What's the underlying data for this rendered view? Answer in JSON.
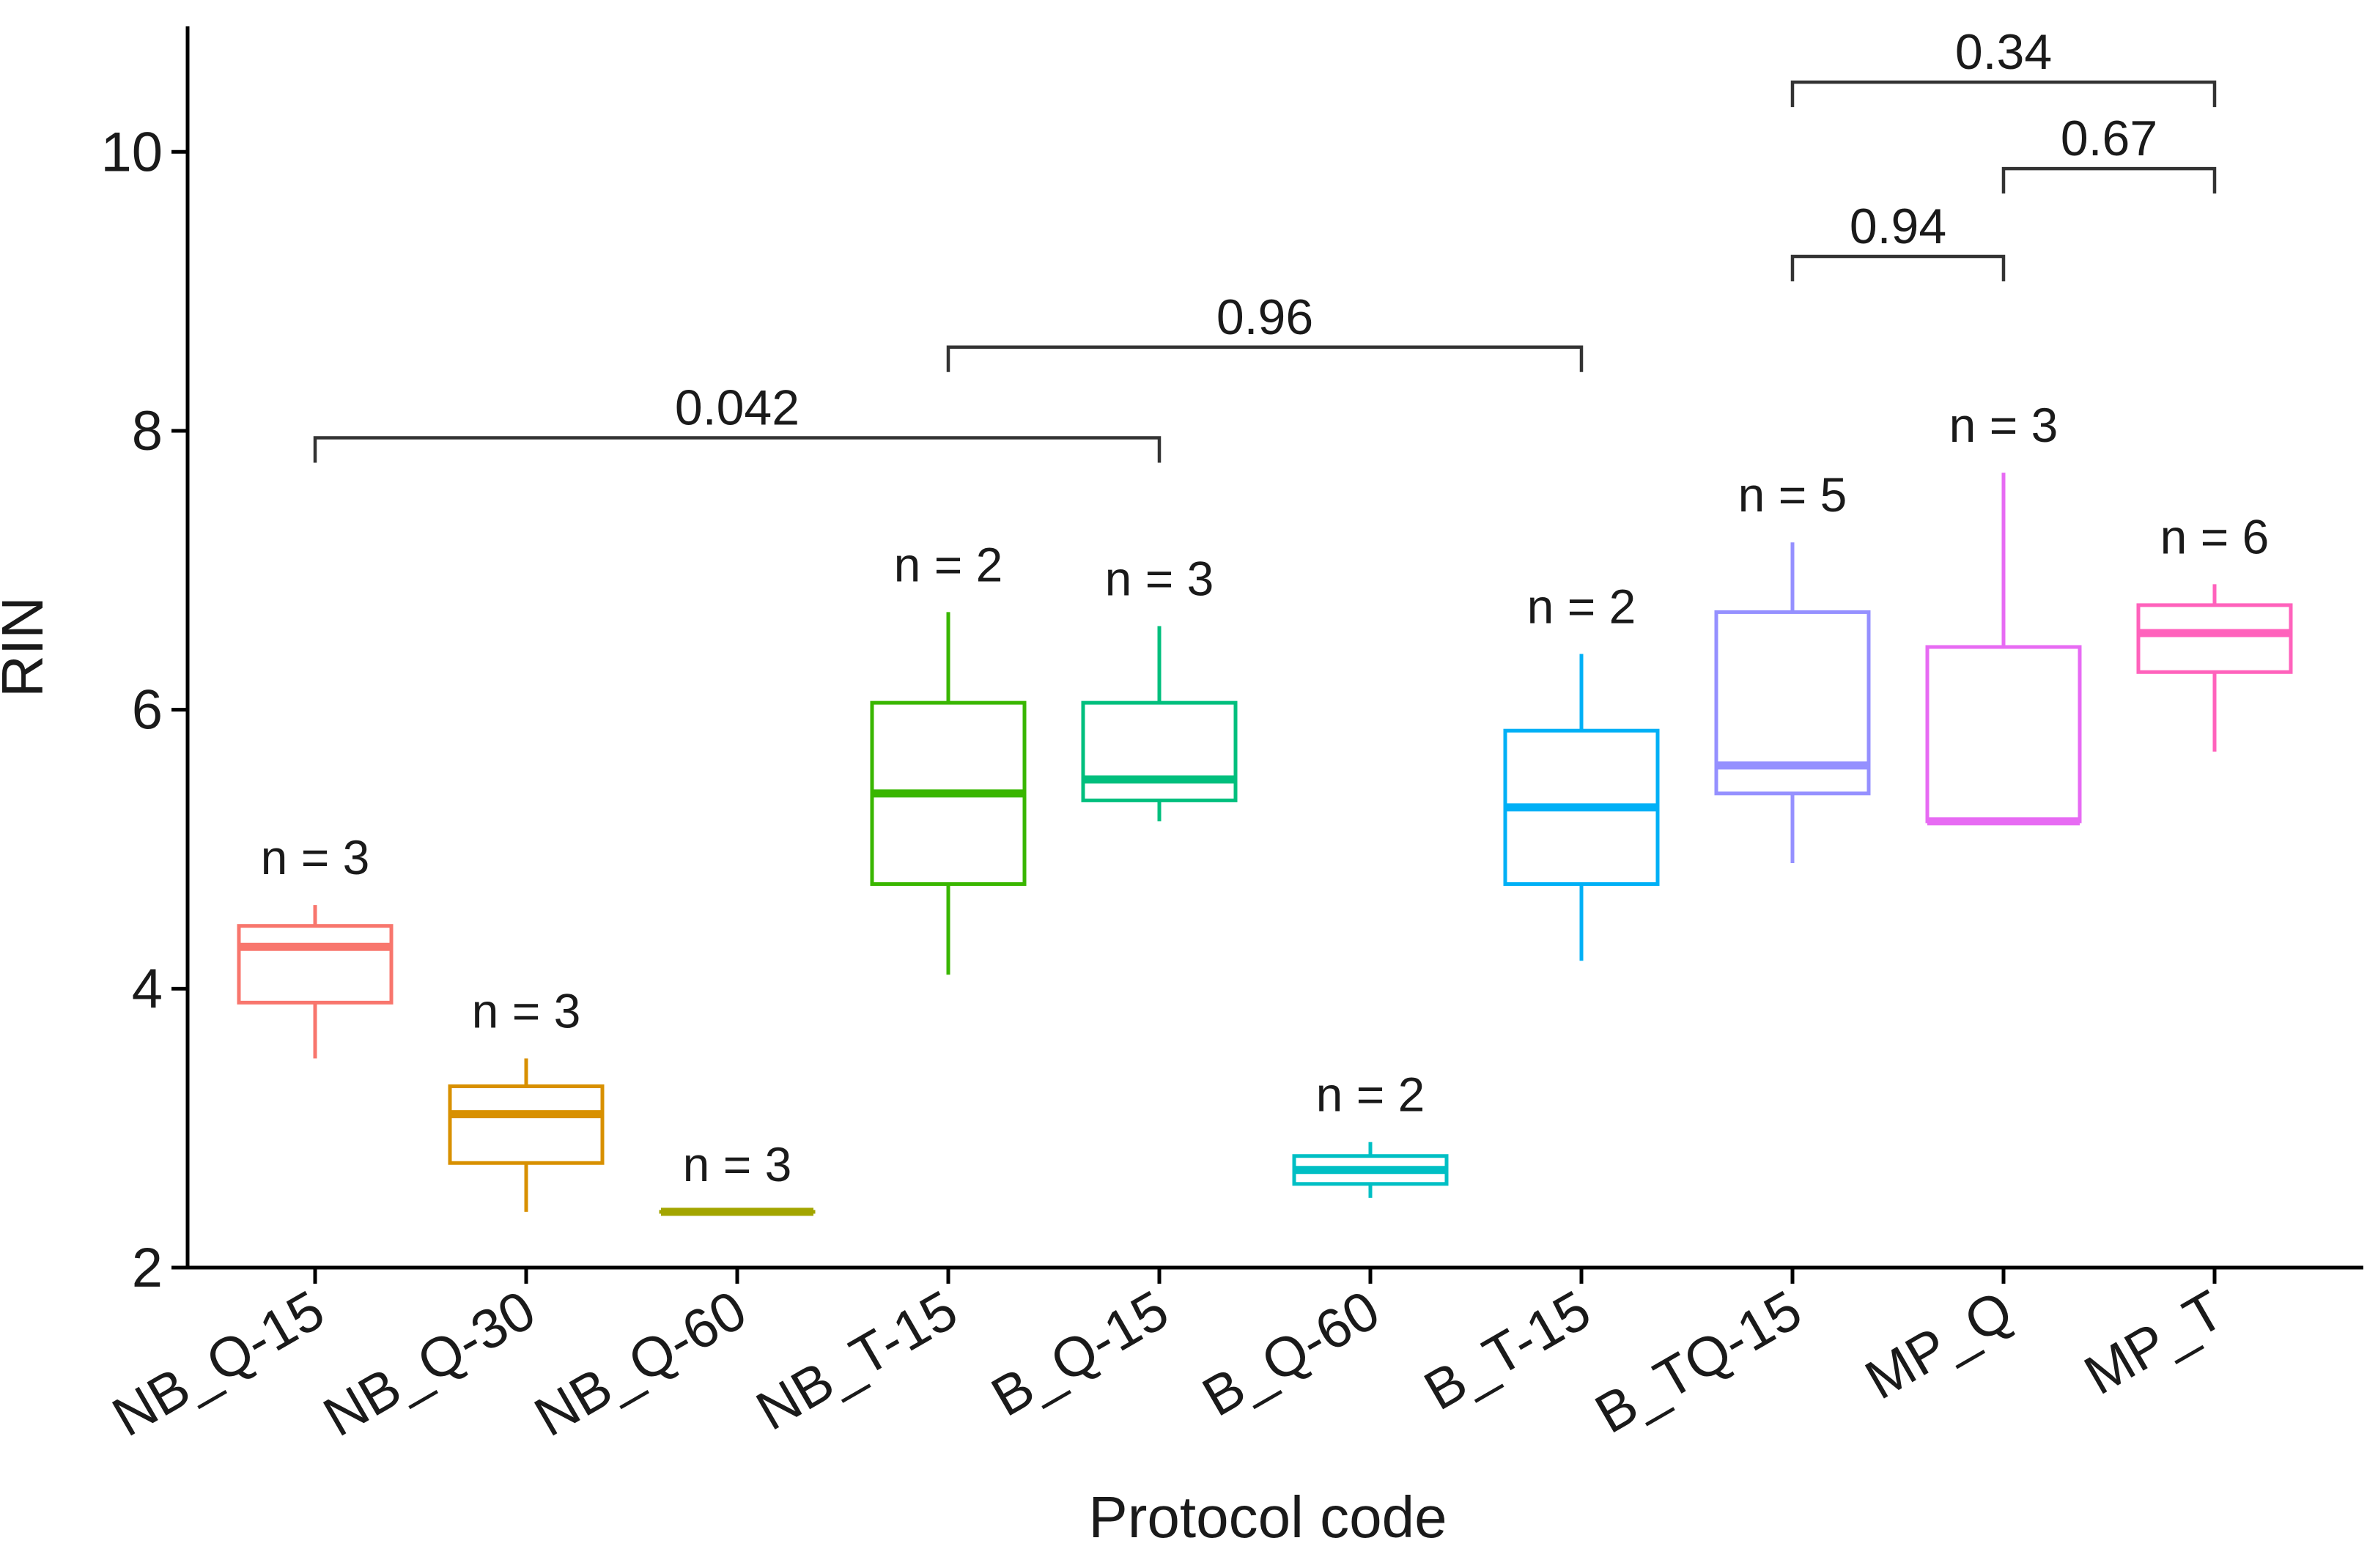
{
  "chart_data": {
    "type": "box",
    "xlabel": "Protocol code",
    "ylabel": "RIN",
    "ylim": [
      2,
      10.9
    ],
    "yticks": [
      2,
      4,
      6,
      8,
      10
    ],
    "yticks_labels": [
      "2",
      "4",
      "6",
      "8",
      "10"
    ],
    "categories": [
      "NB_Q-15",
      "NB_Q-30",
      "NB_Q-60",
      "NB_T-15",
      "B_Q-15",
      "B_Q-60",
      "B_T-15",
      "B_TQ-15",
      "MP_Q",
      "MP_T"
    ],
    "boxes": [
      {
        "category": "NB_Q-15",
        "color": "#F8766D",
        "whisker_low": 3.5,
        "q1": 3.9,
        "median": 4.3,
        "q3": 4.45,
        "whisker_high": 4.6,
        "n_label": "n = 3"
      },
      {
        "category": "NB_Q-30",
        "color": "#D89000",
        "whisker_low": 2.4,
        "q1": 2.75,
        "median": 3.1,
        "q3": 3.3,
        "whisker_high": 3.5,
        "n_label": "n = 3"
      },
      {
        "category": "NB_Q-60",
        "color": "#A3A500",
        "whisker_low": 2.4,
        "q1": 2.4,
        "median": 2.4,
        "q3": 2.4,
        "whisker_high": 2.4,
        "n_label": "n = 3"
      },
      {
        "category": "NB_T-15",
        "color": "#39B600",
        "whisker_low": 4.1,
        "q1": 4.75,
        "median": 5.4,
        "q3": 6.05,
        "whisker_high": 6.7,
        "n_label": "n = 2"
      },
      {
        "category": "B_Q-15",
        "color": "#00BF7D",
        "whisker_low": 5.2,
        "q1": 5.35,
        "median": 5.5,
        "q3": 6.05,
        "whisker_high": 6.6,
        "n_label": "n = 3"
      },
      {
        "category": "B_Q-60",
        "color": "#00BFC4",
        "whisker_low": 2.5,
        "q1": 2.6,
        "median": 2.7,
        "q3": 2.8,
        "whisker_high": 2.9,
        "n_label": "n = 2"
      },
      {
        "category": "B_T-15",
        "color": "#00B0F6",
        "whisker_low": 4.2,
        "q1": 4.75,
        "median": 5.3,
        "q3": 5.85,
        "whisker_high": 6.4,
        "n_label": "n = 2"
      },
      {
        "category": "B_TQ-15",
        "color": "#9590FF",
        "whisker_low": 4.9,
        "q1": 5.4,
        "median": 5.6,
        "q3": 6.7,
        "whisker_high": 7.2,
        "n_label": "n = 5"
      },
      {
        "category": "MP_Q",
        "color": "#E76BF3",
        "whisker_low": 5.2,
        "q1": 5.2,
        "median": 5.2,
        "q3": 6.45,
        "whisker_high": 7.7,
        "n_label": "n = 3"
      },
      {
        "category": "MP_T",
        "color": "#FF62BC",
        "whisker_low": 5.7,
        "q1": 6.27,
        "median": 6.55,
        "q3": 6.75,
        "whisker_high": 6.9,
        "n_label": "n = 6"
      }
    ],
    "comparisons": [
      {
        "from": "NB_Q-15",
        "to": "B_Q-15",
        "y": 7.95,
        "label": "0.042"
      },
      {
        "from": "NB_T-15",
        "to": "B_T-15",
        "y": 8.6,
        "label": "0.96"
      },
      {
        "from": "B_TQ-15",
        "to": "MP_Q",
        "y": 9.25,
        "label": "0.94"
      },
      {
        "from": "MP_Q",
        "to": "MP_T",
        "y": 9.88,
        "label": "0.67"
      },
      {
        "from": "B_TQ-15",
        "to": "MP_T",
        "y": 10.5,
        "label": "0.34"
      }
    ]
  }
}
